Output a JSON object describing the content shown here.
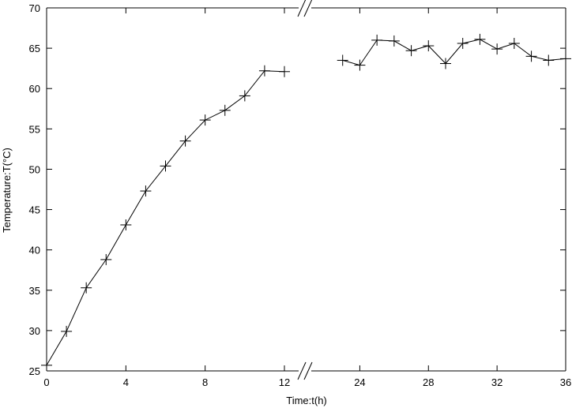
{
  "chart_data": {
    "type": "line",
    "title": "",
    "xlabel": "Time:t(h)",
    "ylabel": "Temperature:T(°C)",
    "ylim": [
      25,
      70
    ],
    "yticks": [
      25,
      30,
      35,
      40,
      45,
      50,
      55,
      60,
      65,
      70
    ],
    "x_axis_break": {
      "between": [
        12,
        22
      ]
    },
    "x_segments": [
      {
        "range": [
          0,
          12
        ],
        "ticks": [
          0,
          4,
          8,
          12
        ]
      },
      {
        "range": [
          22,
          36
        ],
        "ticks": [
          24,
          28,
          32,
          36
        ]
      }
    ],
    "series": [
      {
        "marker": "plus",
        "color": "#000000",
        "segments": [
          {
            "x": [
              0,
              1,
              2,
              3,
              4,
              5,
              6,
              7,
              8,
              9,
              10,
              11,
              12
            ],
            "y": [
              25.7,
              29.9,
              35.3,
              38.8,
              43.1,
              47.3,
              50.4,
              53.5,
              56.1,
              57.3,
              59.1,
              62.2,
              62.1
            ]
          },
          {
            "x": [
              23,
              24,
              25,
              26,
              27,
              28,
              29,
              30,
              31,
              32,
              33,
              34,
              35,
              36
            ],
            "y": [
              63.5,
              62.9,
              66.0,
              65.9,
              64.7,
              65.3,
              63.1,
              65.6,
              66.1,
              64.9,
              65.6,
              64.0,
              63.5,
              63.7
            ]
          }
        ]
      }
    ],
    "grid": false,
    "legend": "none"
  }
}
